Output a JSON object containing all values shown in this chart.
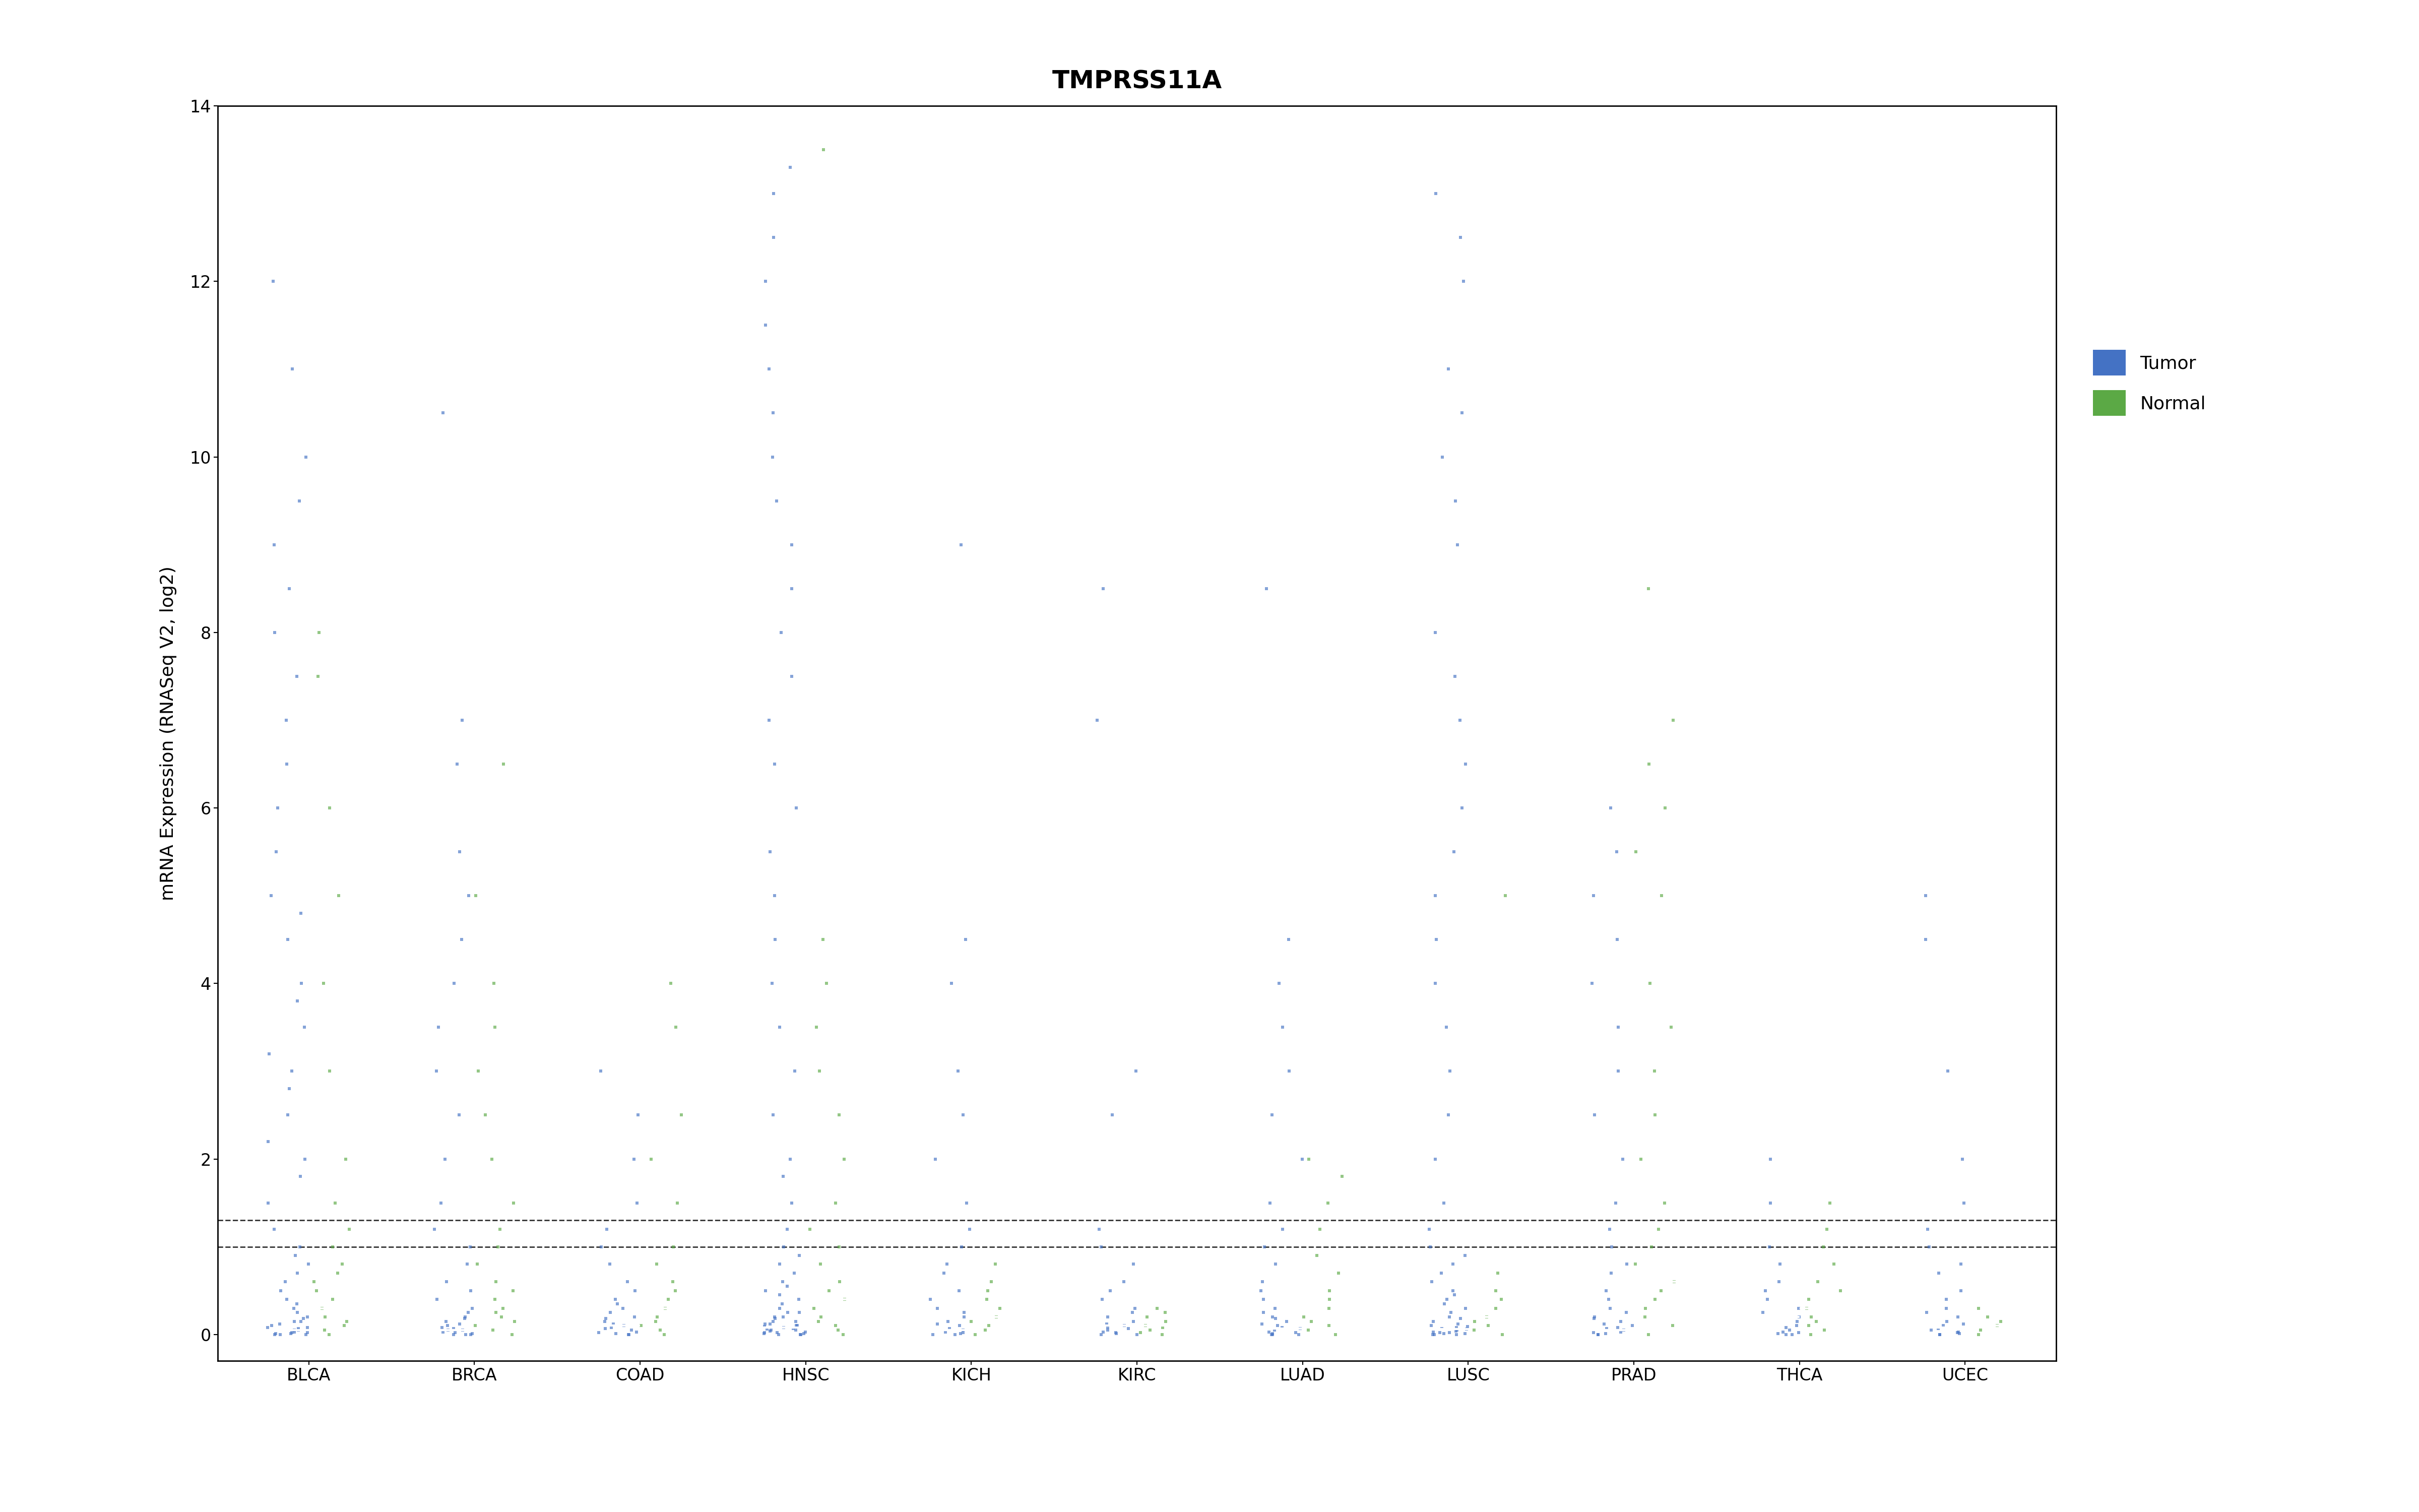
{
  "title": "TMPRSS11A",
  "ylabel": "mRNA Expression (RNASeq V2, log2)",
  "ylim": [
    -0.3,
    14.0
  ],
  "yticks": [
    0,
    2,
    4,
    6,
    8,
    10,
    12,
    14
  ],
  "hlines": [
    1.0,
    1.3
  ],
  "categories": [
    "BLCA",
    "BRCA",
    "COAD",
    "HNSC",
    "KICH",
    "KIRC",
    "LUAD",
    "LUSC",
    "PRAD",
    "THCA",
    "UCEC"
  ],
  "tumor_color": "#4472C4",
  "normal_color": "#5BA945",
  "background_color": "#FFFFFF",
  "legend_tumor": "Tumor",
  "legend_normal": "Normal",
  "title_fontsize": 36,
  "label_fontsize": 26,
  "tick_fontsize": 24,
  "violin_width": 0.28,
  "tumor_scatter": {
    "BLCA": [
      0.0,
      0.0,
      0.0,
      0.01,
      0.01,
      0.02,
      0.02,
      0.03,
      0.05,
      0.05,
      0.07,
      0.08,
      0.08,
      0.1,
      0.12,
      0.15,
      0.15,
      0.18,
      0.2,
      0.25,
      0.3,
      0.35,
      0.4,
      0.5,
      0.6,
      0.7,
      0.8,
      0.9,
      1.0,
      1.2,
      1.5,
      1.8,
      2.0,
      2.2,
      2.5,
      2.8,
      3.0,
      3.2,
      3.5,
      3.8,
      4.0,
      4.5,
      4.8,
      5.0,
      5.5,
      6.0,
      6.5,
      7.0,
      7.5,
      8.0,
      8.5,
      9.0,
      9.5,
      10.0,
      11.0,
      12.0
    ],
    "BRCA": [
      0.0,
      0.0,
      0.0,
      0.01,
      0.02,
      0.03,
      0.05,
      0.05,
      0.07,
      0.08,
      0.1,
      0.12,
      0.15,
      0.18,
      0.2,
      0.25,
      0.3,
      0.4,
      0.5,
      0.6,
      0.8,
      1.0,
      1.2,
      1.5,
      2.0,
      2.5,
      3.0,
      3.5,
      4.0,
      4.5,
      5.0,
      5.5,
      6.5,
      7.0,
      10.5
    ],
    "COAD": [
      0.0,
      0.0,
      0.01,
      0.02,
      0.03,
      0.05,
      0.07,
      0.08,
      0.1,
      0.12,
      0.15,
      0.18,
      0.2,
      0.25,
      0.3,
      0.35,
      0.4,
      0.5,
      0.6,
      0.8,
      1.0,
      1.2,
      1.5,
      2.0,
      2.5,
      3.0
    ],
    "HNSC": [
      0.0,
      0.0,
      0.0,
      0.01,
      0.01,
      0.02,
      0.02,
      0.03,
      0.04,
      0.05,
      0.05,
      0.06,
      0.07,
      0.08,
      0.09,
      0.1,
      0.1,
      0.12,
      0.12,
      0.15,
      0.15,
      0.18,
      0.2,
      0.2,
      0.25,
      0.25,
      0.3,
      0.35,
      0.4,
      0.45,
      0.5,
      0.55,
      0.6,
      0.7,
      0.8,
      0.9,
      1.0,
      1.2,
      1.5,
      1.8,
      2.0,
      2.5,
      3.0,
      3.5,
      4.0,
      4.5,
      5.0,
      5.5,
      6.0,
      6.5,
      7.0,
      7.5,
      8.0,
      8.5,
      9.0,
      9.5,
      10.0,
      10.5,
      11.0,
      11.5,
      12.0,
      12.5,
      13.0,
      13.3
    ],
    "KICH": [
      0.0,
      0.0,
      0.01,
      0.02,
      0.03,
      0.05,
      0.07,
      0.1,
      0.12,
      0.15,
      0.2,
      0.25,
      0.3,
      0.4,
      0.5,
      0.7,
      0.8,
      1.0,
      1.2,
      1.5,
      2.0,
      2.5,
      3.0,
      4.0,
      4.5,
      9.0
    ],
    "KIRC": [
      0.0,
      0.0,
      0.01,
      0.02,
      0.03,
      0.05,
      0.07,
      0.08,
      0.1,
      0.12,
      0.15,
      0.2,
      0.25,
      0.3,
      0.4,
      0.5,
      0.6,
      0.8,
      1.0,
      1.2,
      2.5,
      3.0,
      7.0,
      8.5
    ],
    "LUAD": [
      0.0,
      0.0,
      0.0,
      0.01,
      0.02,
      0.03,
      0.05,
      0.07,
      0.08,
      0.1,
      0.12,
      0.15,
      0.18,
      0.2,
      0.25,
      0.3,
      0.4,
      0.5,
      0.6,
      0.8,
      1.0,
      1.2,
      1.5,
      2.0,
      2.5,
      3.0,
      3.5,
      4.0,
      4.5,
      8.5
    ],
    "LUSC": [
      0.0,
      0.0,
      0.0,
      0.01,
      0.01,
      0.02,
      0.02,
      0.03,
      0.04,
      0.05,
      0.06,
      0.07,
      0.08,
      0.09,
      0.1,
      0.12,
      0.15,
      0.18,
      0.2,
      0.25,
      0.3,
      0.35,
      0.4,
      0.45,
      0.5,
      0.6,
      0.7,
      0.8,
      0.9,
      1.0,
      1.2,
      1.5,
      2.0,
      2.5,
      3.0,
      3.5,
      4.0,
      4.5,
      5.0,
      5.5,
      6.0,
      6.5,
      7.0,
      7.5,
      8.0,
      9.0,
      9.5,
      10.0,
      10.5,
      11.0,
      12.0,
      12.5,
      13.0
    ],
    "PRAD": [
      0.0,
      0.0,
      0.01,
      0.02,
      0.03,
      0.05,
      0.07,
      0.08,
      0.1,
      0.12,
      0.15,
      0.18,
      0.2,
      0.25,
      0.3,
      0.4,
      0.5,
      0.7,
      0.8,
      1.0,
      1.2,
      1.5,
      2.0,
      2.5,
      3.0,
      3.5,
      4.0,
      4.5,
      5.0,
      5.5,
      6.0
    ],
    "THCA": [
      0.0,
      0.0,
      0.01,
      0.02,
      0.03,
      0.05,
      0.08,
      0.1,
      0.15,
      0.2,
      0.25,
      0.3,
      0.4,
      0.5,
      0.6,
      0.8,
      1.0,
      1.5,
      2.0
    ],
    "UCEC": [
      0.0,
      0.0,
      0.01,
      0.02,
      0.03,
      0.05,
      0.07,
      0.1,
      0.12,
      0.15,
      0.2,
      0.25,
      0.3,
      0.4,
      0.5,
      0.7,
      0.8,
      1.0,
      1.2,
      1.5,
      2.0,
      3.0,
      4.5,
      5.0
    ]
  },
  "normal_scatter": {
    "BLCA": [
      0.0,
      0.05,
      0.1,
      0.15,
      0.2,
      0.3,
      0.4,
      0.5,
      0.6,
      0.7,
      0.8,
      1.0,
      1.2,
      1.5,
      2.0,
      3.0,
      4.0,
      5.0,
      6.0,
      7.5,
      8.0
    ],
    "BRCA": [
      0.0,
      0.05,
      0.1,
      0.15,
      0.2,
      0.25,
      0.3,
      0.4,
      0.5,
      0.6,
      0.8,
      1.0,
      1.2,
      1.5,
      2.0,
      2.5,
      3.0,
      3.5,
      4.0,
      5.0,
      6.5
    ],
    "COAD": [
      0.0,
      0.05,
      0.1,
      0.15,
      0.2,
      0.3,
      0.4,
      0.5,
      0.6,
      0.8,
      1.0,
      1.5,
      2.0,
      2.5,
      3.5,
      4.0
    ],
    "HNSC": [
      0.0,
      0.05,
      0.1,
      0.15,
      0.2,
      0.3,
      0.4,
      0.5,
      0.6,
      0.8,
      1.0,
      1.2,
      1.5,
      2.0,
      2.5,
      3.0,
      3.5,
      4.0,
      4.5,
      13.5
    ],
    "KICH": [
      0.0,
      0.05,
      0.1,
      0.15,
      0.2,
      0.3,
      0.4,
      0.5,
      0.6,
      0.8
    ],
    "KIRC": [
      0.0,
      0.02,
      0.05,
      0.08,
      0.1,
      0.15,
      0.2,
      0.25,
      0.3
    ],
    "LUAD": [
      0.0,
      0.05,
      0.1,
      0.15,
      0.2,
      0.3,
      0.4,
      0.5,
      0.7,
      0.9,
      1.2,
      1.5,
      1.8,
      2.0
    ],
    "LUSC": [
      0.0,
      0.05,
      0.1,
      0.15,
      0.2,
      0.3,
      0.4,
      0.5,
      0.7,
      5.0
    ],
    "PRAD": [
      0.0,
      0.1,
      0.2,
      0.3,
      0.4,
      0.5,
      0.6,
      0.8,
      1.0,
      1.2,
      1.5,
      2.0,
      2.5,
      3.0,
      3.5,
      4.0,
      5.0,
      5.5,
      6.0,
      6.5,
      7.0,
      8.5
    ],
    "THCA": [
      0.0,
      0.05,
      0.1,
      0.15,
      0.2,
      0.3,
      0.4,
      0.5,
      0.6,
      0.8,
      1.0,
      1.2,
      1.5
    ],
    "UCEC": [
      0.0,
      0.05,
      0.1,
      0.15,
      0.2,
      0.3
    ]
  },
  "tumor_medians": {
    "BLCA": 0.05,
    "BRCA": 0.05,
    "COAD": 0.1,
    "HNSC": 0.08,
    "KICH": 0.05,
    "KIRC": 0.1,
    "LUAD": 0.07,
    "LUSC": 0.06,
    "PRAD": 0.05,
    "THCA": 0.2,
    "UCEC": 0.08
  },
  "normal_medians": {
    "BLCA": 0.3,
    "BRCA": 0.35,
    "COAD": 0.3,
    "HNSC": 0.4,
    "KICH": 0.2,
    "KIRC": 0.1,
    "LUAD": 0.35,
    "LUSC": 0.2,
    "PRAD": 0.6,
    "THCA": 0.3,
    "UCEC": 0.1
  }
}
